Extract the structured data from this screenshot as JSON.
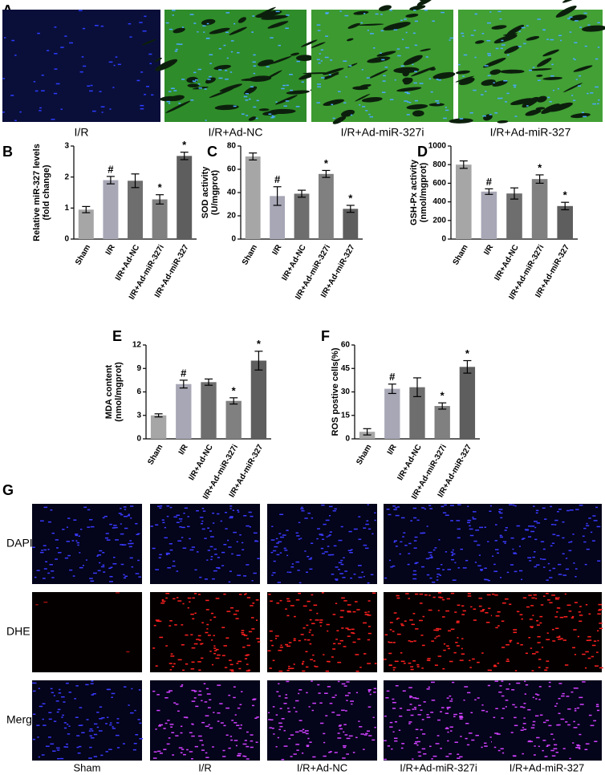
{
  "figure": {
    "panel_labels": [
      "A",
      "B",
      "C",
      "D",
      "E",
      "F",
      "G"
    ],
    "panel_a": {
      "captions": [
        "I/R",
        "I/R+Ad-NC",
        "I/R+Ad-miR-327i",
        "I/R+Ad-miR-327"
      ]
    },
    "panel_g": {
      "rows": [
        "DAPI",
        "DHE",
        "Merge"
      ],
      "columns": [
        "Sham",
        "I/R",
        "I/R+Ad-NC",
        "I/R+Ad-miR-327i",
        "I/R+Ad-miR-327"
      ]
    }
  },
  "chart_data": [
    {
      "type": "bar",
      "ylabel": [
        "Relative miR-327 levels",
        "(fold change)"
      ],
      "categories": [
        "Sham",
        "I/R",
        "I/R+Ad-NC",
        "I/R+Ad-miR-327i",
        "I/R+Ad-miR-327"
      ],
      "values": [
        0.95,
        1.9,
        1.88,
        1.28,
        2.68
      ],
      "errors": [
        0.1,
        0.12,
        0.22,
        0.15,
        0.12
      ],
      "markers": [
        null,
        "#",
        null,
        "*",
        "*"
      ],
      "colors": [
        "#a6a6a6",
        "#a7a7b6",
        "#6e6e6e",
        "#808080",
        "#5e5e5e"
      ],
      "ylim": [
        0,
        3
      ],
      "yticks": [
        0,
        1,
        2,
        3
      ]
    },
    {
      "type": "bar",
      "ylabel": [
        "SOD activity",
        "(U/mgprot)"
      ],
      "categories": [
        "Sham",
        "I/R",
        "I/R+Ad-NC",
        "I/R+Ad-miR-327i",
        "I/R+Ad-miR-327"
      ],
      "values": [
        71,
        37,
        39,
        56,
        26
      ],
      "errors": [
        3,
        8,
        3,
        3,
        3
      ],
      "markers": [
        null,
        "#",
        null,
        "*",
        "*"
      ],
      "colors": [
        "#a6a6a6",
        "#a7a7b6",
        "#6e6e6e",
        "#808080",
        "#5e5e5e"
      ],
      "ylim": [
        0,
        80
      ],
      "yticks": [
        0,
        20,
        40,
        60,
        80
      ]
    },
    {
      "type": "bar",
      "ylabel": [
        "GSH-Px activity",
        "(nmol/mgprot)"
      ],
      "categories": [
        "Sham",
        "I/R",
        "I/R+Ad-NC",
        "I/R+Ad-miR-327i",
        "I/R+Ad-miR-327"
      ],
      "values": [
        800,
        510,
        490,
        645,
        355
      ],
      "errors": [
        40,
        30,
        60,
        45,
        40
      ],
      "markers": [
        null,
        "#",
        null,
        "*",
        "*"
      ],
      "colors": [
        "#a6a6a6",
        "#a7a7b6",
        "#6e6e6e",
        "#808080",
        "#5e5e5e"
      ],
      "ylim": [
        0,
        1000
      ],
      "yticks": [
        0,
        200,
        400,
        600,
        800,
        1000
      ]
    },
    {
      "type": "bar",
      "ylabel": [
        "MDA content",
        "(nmol/mgprot)"
      ],
      "categories": [
        "Sham",
        "I/R",
        "I/R+Ad-NC",
        "I/R+Ad-miR-327i",
        "I/R+Ad-miR-327"
      ],
      "values": [
        3,
        7,
        7.25,
        4.85,
        10
      ],
      "errors": [
        0.2,
        0.5,
        0.4,
        0.4,
        1.2
      ],
      "markers": [
        null,
        "#",
        null,
        "*",
        "*"
      ],
      "colors": [
        "#a6a6a6",
        "#a7a7b6",
        "#6e6e6e",
        "#808080",
        "#5e5e5e"
      ],
      "ylim": [
        0,
        12
      ],
      "yticks": [
        0,
        3,
        6,
        9,
        12
      ]
    },
    {
      "type": "bar",
      "ylabel": [
        "ROS postive cells(%)"
      ],
      "categories": [
        "Sham",
        "I/R",
        "I/R+Ad-NC",
        "I/R+Ad-miR-327i",
        "I/R+Ad-miR-327"
      ],
      "values": [
        4.5,
        32,
        33,
        21,
        46
      ],
      "errors": [
        2,
        3,
        6,
        2,
        4
      ],
      "markers": [
        null,
        "#",
        null,
        "*",
        "*"
      ],
      "colors": [
        "#a6a6a6",
        "#a7a7b6",
        "#6e6e6e",
        "#808080",
        "#5e5e5e"
      ],
      "ylim": [
        0,
        60
      ],
      "yticks": [
        0,
        15,
        30,
        45,
        60
      ]
    }
  ]
}
